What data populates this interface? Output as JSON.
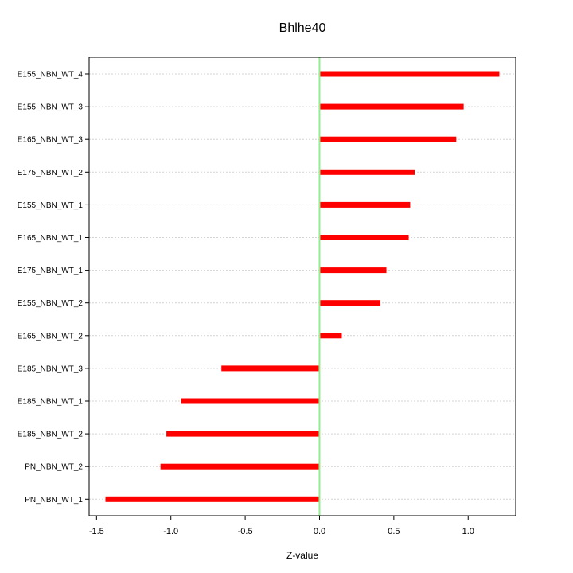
{
  "chart_data": {
    "type": "bar",
    "orientation": "horizontal",
    "title": "Bhlhe40",
    "xlabel": "Z-value",
    "ylabel": "",
    "xlim": [
      -1.55,
      1.32
    ],
    "xticks": [
      -1.5,
      -1.0,
      -0.5,
      0.0,
      0.5,
      1.0
    ],
    "xtick_labels": [
      "-1.5",
      "-1.0",
      "-0.5",
      "0.0",
      "0.5",
      "1.0"
    ],
    "reference_line": 0,
    "grid": "horizontal dotted",
    "categories": [
      "E155_NBN_WT_4",
      "E155_NBN_WT_3",
      "E165_NBN_WT_3",
      "E175_NBN_WT_2",
      "E155_NBN_WT_1",
      "E165_NBN_WT_1",
      "E175_NBN_WT_1",
      "E155_NBN_WT_2",
      "E165_NBN_WT_2",
      "E185_NBN_WT_3",
      "E185_NBN_WT_1",
      "E185_NBN_WT_2",
      "PN_NBN_WT_2",
      "PN_NBN_WT_1"
    ],
    "values": [
      1.21,
      0.97,
      0.92,
      0.64,
      0.61,
      0.6,
      0.45,
      0.41,
      0.15,
      -0.66,
      -0.93,
      -1.03,
      -1.07,
      -1.44
    ],
    "colors": {
      "bar": "#ff0000",
      "reference_line": "#90ee90",
      "grid": "#d3d3d3",
      "axis": "#000000"
    }
  }
}
